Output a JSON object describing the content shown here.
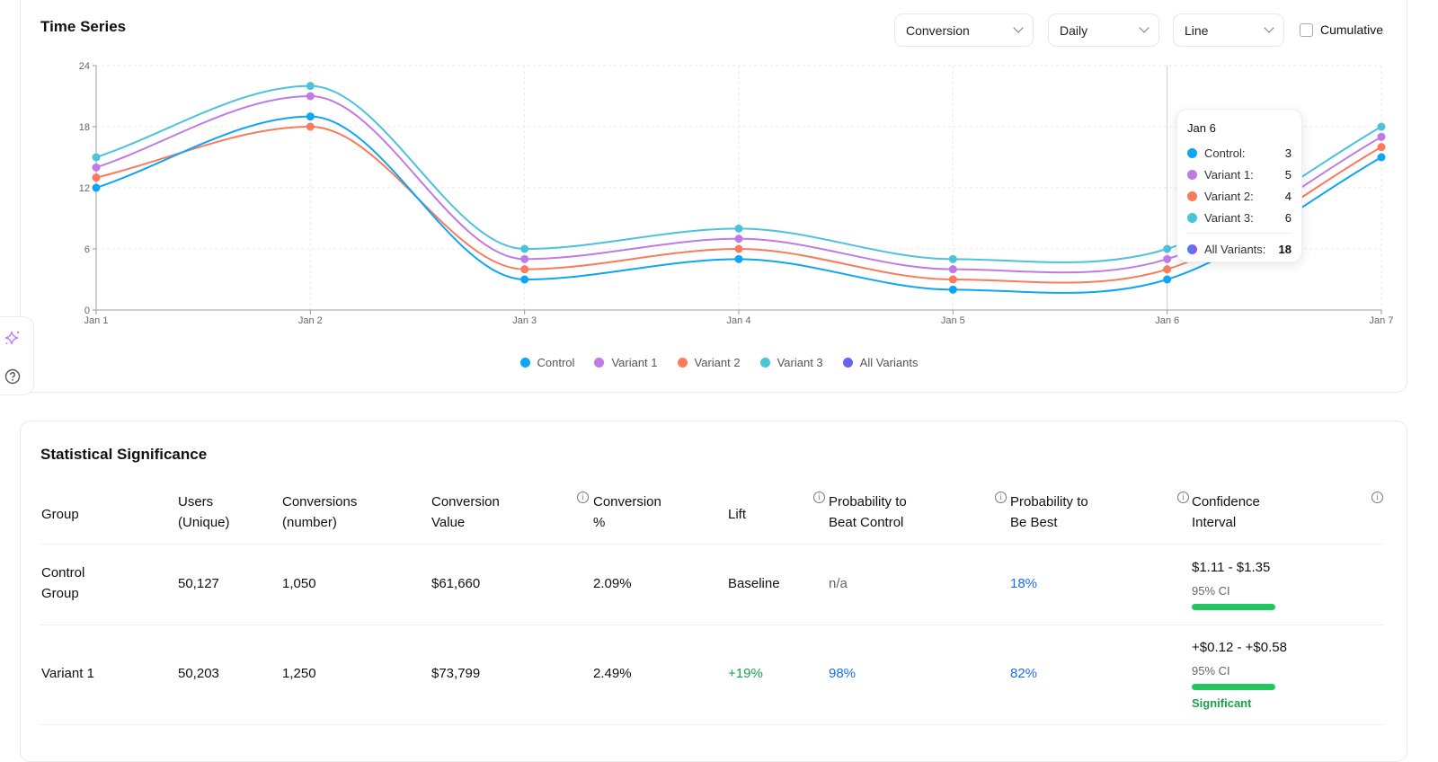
{
  "time_series": {
    "title": "Time Series",
    "controls": {
      "metric": "Conversion",
      "interval": "Daily",
      "chart_type": "Line",
      "cumulative_label": "Cumulative",
      "cumulative_checked": false
    },
    "tooltip": {
      "title": "Jan 6",
      "rows": [
        {
          "label": "Control:",
          "value": "3",
          "color": "#0ea5f5"
        },
        {
          "label": "Variant 1:",
          "value": "5",
          "color": "#c07ae6"
        },
        {
          "label": "Variant 2:",
          "value": "4",
          "color": "#fb7a5c"
        },
        {
          "label": "Variant 3:",
          "value": "6",
          "color": "#4cc3d9"
        }
      ],
      "total": {
        "label": "All Variants:",
        "value": "18",
        "color": "#6a63f0"
      }
    }
  },
  "chart_data": {
    "type": "line",
    "title": "Time Series",
    "x": [
      "Jan 1",
      "Jan 2",
      "Jan 3",
      "Jan 4",
      "Jan 5",
      "Jan 6",
      "Jan 7"
    ],
    "ylim": [
      0,
      24
    ],
    "yticks": [
      "0",
      "6",
      "12",
      "18",
      "24"
    ],
    "grid": true,
    "legend_position": "bottom",
    "series": [
      {
        "name": "Control",
        "color": "#0ea5f5",
        "values": [
          12,
          19,
          3,
          5,
          2,
          3,
          15
        ]
      },
      {
        "name": "Variant 1",
        "color": "#c07ae6",
        "values": [
          14,
          21,
          5,
          7,
          4,
          5,
          17
        ]
      },
      {
        "name": "Variant 2",
        "color": "#fb7a5c",
        "values": [
          13,
          18,
          4,
          6,
          3,
          4,
          16
        ]
      },
      {
        "name": "Variant 3",
        "color": "#4cc3d9",
        "values": [
          15,
          22,
          6,
          8,
          5,
          6,
          18
        ]
      }
    ],
    "legend": [
      {
        "name": "Control",
        "color": "#0ea5f5"
      },
      {
        "name": "Variant 1",
        "color": "#c07ae6"
      },
      {
        "name": "Variant 2",
        "color": "#fb7a5c"
      },
      {
        "name": "Variant 3",
        "color": "#4cc3d9"
      },
      {
        "name": "All Variants",
        "color": "#6a63f0"
      }
    ],
    "hover_x": "Jan 6"
  },
  "significance": {
    "title": "Statistical Significance",
    "headers": [
      [
        "Group"
      ],
      [
        "Users",
        "(Unique)"
      ],
      [
        "Conversions",
        "(number)"
      ],
      [
        "Conversion",
        "Value"
      ],
      [
        "Conversion",
        "%"
      ],
      [
        "Lift"
      ],
      [
        "Probability to",
        "Beat Control"
      ],
      [
        "Probability to",
        "Be Best"
      ],
      [
        "Confidence",
        "Interval"
      ]
    ],
    "rows": [
      {
        "group": [
          "Control",
          "Group"
        ],
        "users": "50,127",
        "conversions": "1,050",
        "value": "$61,660",
        "pct": "2.09%",
        "lift": "Baseline",
        "beat": "n/a",
        "best": "18%",
        "ci": "$1.11 - $1.35",
        "ci_label": "95% CI",
        "status": ""
      },
      {
        "group": [
          "Variant 1"
        ],
        "users": "50,203",
        "conversions": "1,250",
        "value": "$73,799",
        "pct": "2.49%",
        "lift": "+19%",
        "beat": "98%",
        "best": "82%",
        "ci": "+$0.12 - +$0.58",
        "ci_label": "95% CI",
        "status": "Significant"
      }
    ]
  }
}
